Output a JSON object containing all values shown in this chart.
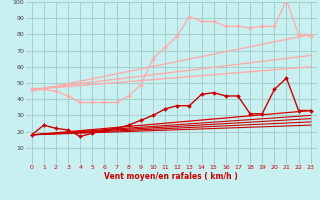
{
  "background_color": "#c8f0f0",
  "grid_color": "#a0c8c8",
  "xlabel": "Vent moyen/en rafales ( km/h )",
  "ylim": [
    0,
    100
  ],
  "xlim": [
    -0.5,
    23.5
  ],
  "yticks": [
    10,
    20,
    30,
    40,
    50,
    60,
    70,
    80,
    90,
    100
  ],
  "xticks": [
    0,
    1,
    2,
    3,
    4,
    5,
    6,
    7,
    8,
    9,
    10,
    11,
    12,
    13,
    14,
    15,
    16,
    17,
    18,
    19,
    20,
    21,
    22,
    23
  ],
  "lines": [
    {
      "x": [
        0,
        1,
        2,
        3,
        4,
        5,
        6,
        7,
        8,
        9,
        10,
        11,
        12,
        13,
        14,
        15,
        16,
        17,
        18,
        19,
        20,
        21,
        22,
        23
      ],
      "y": [
        46,
        46,
        45,
        42,
        38,
        38,
        38,
        38,
        42,
        49,
        65,
        72,
        79,
        91,
        88,
        88,
        85,
        85,
        84,
        85,
        85,
        101,
        80,
        79
      ],
      "color": "#ffaaaa",
      "lw": 0.9,
      "marker": "D",
      "ms": 2.0,
      "zorder": 3
    },
    {
      "x": [
        0,
        23
      ],
      "y": [
        45,
        80
      ],
      "color": "#ffaaaa",
      "lw": 1.0,
      "marker": null,
      "ms": 0,
      "zorder": 2
    },
    {
      "x": [
        0,
        23
      ],
      "y": [
        46,
        67
      ],
      "color": "#ffaaaa",
      "lw": 1.0,
      "marker": null,
      "ms": 0,
      "zorder": 2
    },
    {
      "x": [
        0,
        23
      ],
      "y": [
        46,
        60
      ],
      "color": "#ffaaaa",
      "lw": 1.0,
      "marker": null,
      "ms": 0,
      "zorder": 2
    },
    {
      "x": [
        0,
        23
      ],
      "y": [
        18,
        33
      ],
      "color": "#ffaaaa",
      "lw": 1.0,
      "marker": null,
      "ms": 0,
      "zorder": 2
    },
    {
      "x": [
        0,
        1,
        2,
        3,
        4,
        5,
        6,
        7,
        8,
        9,
        10,
        11,
        12,
        13,
        14,
        15,
        16,
        17,
        18,
        19,
        20,
        21,
        22,
        23
      ],
      "y": [
        18,
        24,
        22,
        21,
        17,
        19,
        21,
        22,
        24,
        27,
        30,
        34,
        36,
        36,
        43,
        44,
        42,
        42,
        31,
        31,
        46,
        53,
        33,
        33
      ],
      "color": "#cc0000",
      "lw": 1.0,
      "marker": "D",
      "ms": 2.0,
      "zorder": 4
    },
    {
      "x": [
        0,
        23
      ],
      "y": [
        18,
        33
      ],
      "color": "#cc0000",
      "lw": 0.8,
      "marker": null,
      "ms": 0,
      "zorder": 3
    },
    {
      "x": [
        0,
        23
      ],
      "y": [
        18,
        30
      ],
      "color": "#cc0000",
      "lw": 0.8,
      "marker": null,
      "ms": 0,
      "zorder": 3
    },
    {
      "x": [
        0,
        23
      ],
      "y": [
        18,
        28
      ],
      "color": "#cc0000",
      "lw": 0.8,
      "marker": null,
      "ms": 0,
      "zorder": 3
    },
    {
      "x": [
        0,
        23
      ],
      "y": [
        18,
        26
      ],
      "color": "#cc0000",
      "lw": 0.8,
      "marker": null,
      "ms": 0,
      "zorder": 3
    },
    {
      "x": [
        0,
        23
      ],
      "y": [
        18,
        24
      ],
      "color": "#cc0000",
      "lw": 0.8,
      "marker": null,
      "ms": 0,
      "zorder": 3
    }
  ]
}
